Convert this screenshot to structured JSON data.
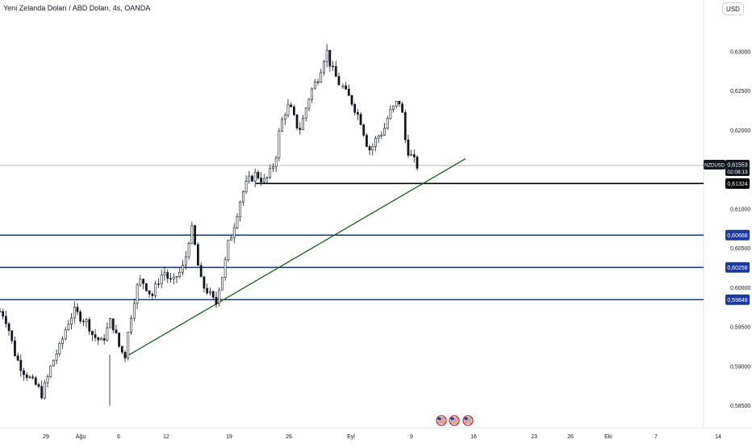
{
  "header": {
    "title": "Yeni Zelanda Doları / ABD Doları, 4s, OANDA",
    "currency_button": "USD"
  },
  "colors": {
    "candle_up": "#131722",
    "candle_down": "#131722",
    "candle_up_fill": "#ffffff",
    "support_line": "#1a3b9b",
    "resistance_line": "#000000",
    "trend_line": "#1b5e20",
    "last_price_line": "#b2b5be",
    "axis_text": "#131722"
  },
  "chart_data": {
    "type": "candlestick",
    "symbol": "NZDUSD",
    "last_price": "0,61553",
    "countdown": "02:08:13",
    "ylim": [
      0.5822,
      0.6343
    ],
    "y_ticks": [
      {
        "value": 0.63,
        "label": "0,63000"
      },
      {
        "value": 0.625,
        "label": "0,62500"
      },
      {
        "value": 0.62,
        "label": "0,62000"
      },
      {
        "value": 0.61,
        "label": "0,61000"
      },
      {
        "value": 0.605,
        "label": "0,60500"
      },
      {
        "value": 0.6,
        "label": "0,60000"
      },
      {
        "value": 0.595,
        "label": "0,59500"
      },
      {
        "value": 0.59,
        "label": "0,59000"
      },
      {
        "value": 0.585,
        "label": "0,58500"
      }
    ],
    "x_ticks": [
      "29",
      "Ağu",
      "6",
      "12",
      "19",
      "26",
      "Eyl",
      "9",
      "16",
      "23",
      "26",
      "Eki",
      "7",
      "14"
    ],
    "horizontal_levels": [
      {
        "value": 0.61324,
        "label": "0,61324",
        "style": "resistance"
      },
      {
        "value": 0.60668,
        "label": "0,60668",
        "style": "support"
      },
      {
        "value": 0.60258,
        "label": "0,60258",
        "style": "support"
      },
      {
        "value": 0.59848,
        "label": "0,59848",
        "style": "support"
      }
    ],
    "trend_line": {
      "from": {
        "x": "6",
        "y": 0.5913
      },
      "to": {
        "x": "16",
        "y": 0.6164
      }
    },
    "event_markers": [
      "us-flag-icon",
      "us-flag-icon",
      "us-flag-icon"
    ],
    "series_anchors": [
      [
        0.597,
        0.5965,
        0.5945,
        0.592,
        0.5905,
        0.5895,
        0.5888,
        0.588,
        0.5875,
        0.5865,
        0.588,
        0.59,
        0.5915,
        0.5925,
        0.5945,
        0.596,
        0.597,
        0.5965,
        0.596,
        0.5955,
        0.594,
        0.5935,
        0.593,
        0.5945,
        0.596,
        0.594,
        0.592,
        0.5915
      ],
      [
        0.5915,
        0.595,
        0.598,
        0.6,
        0.601,
        0.6005,
        0.5995,
        0.599,
        0.6005,
        0.6015,
        0.602,
        0.601,
        0.6005,
        0.6015,
        0.602,
        0.603,
        0.606,
        0.6075,
        0.604,
        0.601,
        0.6,
        0.5995,
        0.5985,
        0.598
      ],
      [
        0.5985,
        0.6005,
        0.6025,
        0.6055,
        0.607,
        0.609,
        0.611,
        0.6125,
        0.6135,
        0.614,
        0.6145,
        0.614,
        0.6135,
        0.614,
        0.615,
        0.6165,
        0.62,
        0.622,
        0.623,
        0.6225,
        0.621,
        0.62,
        0.6215,
        0.6235,
        0.625,
        0.626,
        0.627,
        0.629,
        0.63,
        0.628,
        0.627,
        0.626
      ],
      [
        0.6255,
        0.6245,
        0.624,
        0.623,
        0.622,
        0.621,
        0.619,
        0.6175,
        0.618,
        0.619,
        0.6195,
        0.62,
        0.6215,
        0.6225,
        0.623,
        0.624,
        0.622,
        0.618,
        0.617,
        0.6162,
        0.6155
      ]
    ]
  }
}
